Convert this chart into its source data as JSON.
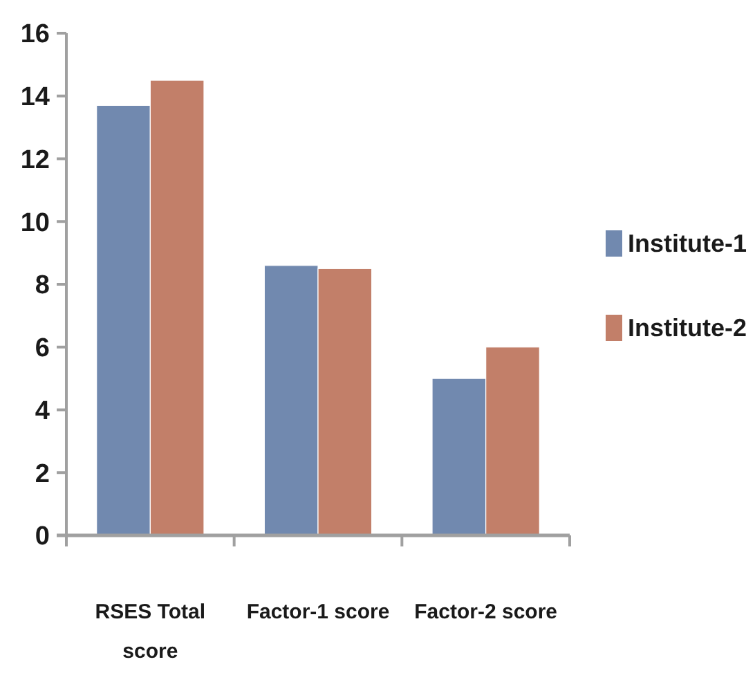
{
  "chart_data": {
    "type": "bar",
    "categories": [
      "RSES Total score",
      "Factor-1 score",
      "Factor-2 score"
    ],
    "series": [
      {
        "name": "Institute-1",
        "color": "#7189af",
        "values": [
          13.7,
          8.6,
          5.0
        ]
      },
      {
        "name": "Institute-2",
        "color": "#c27f69",
        "values": [
          14.5,
          8.5,
          6.0
        ]
      }
    ],
    "ylim": [
      0,
      16
    ],
    "yticks": [
      0,
      2,
      4,
      6,
      8,
      10,
      12,
      14,
      16
    ],
    "grid": false,
    "legend": "right"
  }
}
